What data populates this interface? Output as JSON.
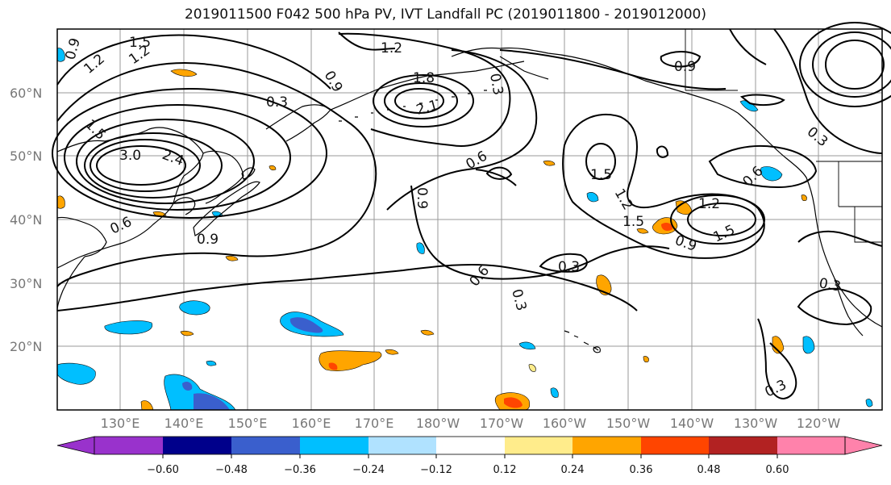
{
  "title": "2019011500 F042 500 hPa PV, IVT Landfall PC (2019011800 - 2019012000)",
  "map": {
    "lat_labels": [
      "60°N",
      "50°N",
      "40°N",
      "30°N",
      "20°N"
    ],
    "lon_labels": [
      "130°E",
      "140°E",
      "150°E",
      "160°E",
      "170°E",
      "180°W",
      "170°W",
      "160°W",
      "150°W",
      "140°W",
      "130°W",
      "120°W"
    ],
    "contour_labels": [
      "1.5",
      "1.2",
      "1.2",
      "0.9",
      "1.5",
      "3.0",
      "2.4",
      "0.3",
      "1.2",
      "1.8",
      "2.1",
      "0.9",
      "0.3",
      "0.6",
      "0.9",
      "0.6",
      "0.9",
      "0.6",
      "0.3",
      "0.3",
      "1.5",
      "1.2",
      "1.5",
      "1.2",
      "0.9",
      "1.5",
      "0.9",
      "0.6",
      "0.3",
      "0.3",
      "0.3"
    ]
  },
  "colorbar": {
    "ticks": [
      "−0.60",
      "−0.48",
      "−0.36",
      "−0.24",
      "−0.12",
      "0.12",
      "0.24",
      "0.36",
      "0.48",
      "0.60"
    ],
    "colors": [
      "#9932cc",
      "#00008b",
      "#3a5fcd",
      "#00bfff",
      "#b0e2ff",
      "#ffffff",
      "#ffec8b",
      "#ffa500",
      "#ff4500",
      "#b22222",
      "#ff82ab"
    ]
  }
}
